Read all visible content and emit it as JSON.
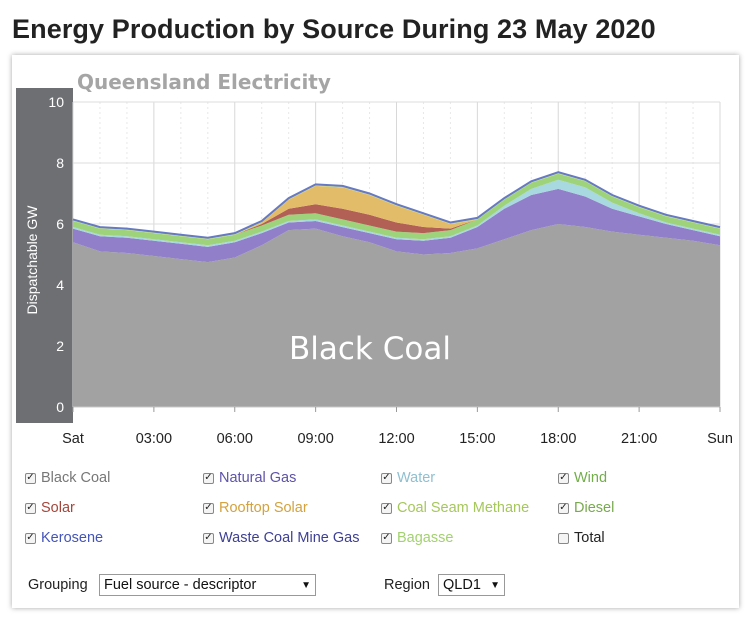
{
  "page_title": "Energy Production by Source During 23 May 2020",
  "chart_data": {
    "type": "area",
    "stacked": true,
    "title": "Queensland Electricity",
    "ylabel": "Dispatchable GW",
    "ylim": [
      0,
      10
    ],
    "yticks": [
      "0",
      "2",
      "4",
      "6",
      "8",
      "10"
    ],
    "xlim": [
      0,
      24
    ],
    "xtick_labels": [
      "Sat",
      "03:00",
      "06:00",
      "09:00",
      "12:00",
      "15:00",
      "18:00",
      "21:00",
      "Sun"
    ],
    "annotation": "Black Coal",
    "x": [
      0,
      1,
      2,
      3,
      4,
      5,
      6,
      7,
      8,
      9,
      10,
      11,
      12,
      13,
      14,
      15,
      16,
      17,
      18,
      19,
      20,
      21,
      22,
      23,
      24
    ],
    "series": [
      {
        "name": "Black Coal",
        "color": "#a2a2a2",
        "values": [
          5.4,
          5.1,
          5.05,
          4.95,
          4.85,
          4.75,
          4.9,
          5.3,
          5.8,
          5.85,
          5.6,
          5.4,
          5.1,
          5.0,
          5.05,
          5.2,
          5.5,
          5.8,
          6.0,
          5.9,
          5.75,
          5.65,
          5.55,
          5.45,
          5.3
        ]
      },
      {
        "name": "Natural Gas",
        "color": "#9180c9",
        "values": [
          0.45,
          0.5,
          0.5,
          0.5,
          0.5,
          0.5,
          0.5,
          0.4,
          0.25,
          0.25,
          0.3,
          0.3,
          0.4,
          0.45,
          0.5,
          0.7,
          1.0,
          1.15,
          1.15,
          1.0,
          0.75,
          0.6,
          0.45,
          0.35,
          0.3
        ]
      },
      {
        "name": "Water",
        "color": "#a8d8e0",
        "values": [
          0.05,
          0.05,
          0.05,
          0.05,
          0.05,
          0.05,
          0.05,
          0.05,
          0.05,
          0.05,
          0.05,
          0.05,
          0.05,
          0.05,
          0.05,
          0.05,
          0.1,
          0.2,
          0.3,
          0.3,
          0.2,
          0.1,
          0.05,
          0.05,
          0.05
        ]
      },
      {
        "name": "Wind",
        "color": "#9fd37b",
        "values": [
          0.2,
          0.2,
          0.2,
          0.2,
          0.2,
          0.2,
          0.2,
          0.2,
          0.2,
          0.2,
          0.2,
          0.2,
          0.2,
          0.2,
          0.2,
          0.2,
          0.2,
          0.2,
          0.2,
          0.2,
          0.2,
          0.2,
          0.2,
          0.2,
          0.2
        ]
      },
      {
        "name": "Solar",
        "color": "#b25f55",
        "values": [
          0,
          0,
          0,
          0,
          0,
          0,
          0,
          0.05,
          0.2,
          0.3,
          0.35,
          0.35,
          0.3,
          0.2,
          0.05,
          0,
          0,
          0,
          0,
          0,
          0,
          0,
          0,
          0,
          0
        ]
      },
      {
        "name": "Rooftop Solar",
        "color": "#e3bc6a",
        "values": [
          0,
          0,
          0,
          0,
          0,
          0,
          0,
          0.05,
          0.3,
          0.6,
          0.7,
          0.65,
          0.55,
          0.4,
          0.15,
          0,
          0,
          0,
          0,
          0,
          0,
          0,
          0,
          0,
          0
        ]
      },
      {
        "name": "Coal Seam Methane",
        "color": "#c5dd8a",
        "values": [
          0.05,
          0.05,
          0.05,
          0.05,
          0.05,
          0.05,
          0.05,
          0.05,
          0.05,
          0.05,
          0.05,
          0.05,
          0.05,
          0.05,
          0.05,
          0.05,
          0.05,
          0.05,
          0.05,
          0.05,
          0.05,
          0.05,
          0.05,
          0.05,
          0.05
        ]
      },
      {
        "name": "Diesel",
        "color": "#90c26a",
        "values": [
          0,
          0,
          0,
          0,
          0,
          0,
          0,
          0,
          0,
          0,
          0,
          0,
          0,
          0,
          0,
          0,
          0,
          0,
          0,
          0,
          0,
          0,
          0,
          0,
          0
        ]
      },
      {
        "name": "Kerosene",
        "color": "#5570cc",
        "values": [
          0,
          0,
          0,
          0,
          0,
          0,
          0,
          0,
          0,
          0,
          0,
          0,
          0,
          0,
          0,
          0,
          0,
          0,
          0,
          0,
          0,
          0,
          0,
          0,
          0
        ]
      },
      {
        "name": "Waste Coal Mine Gas",
        "color": "#4a50a8",
        "values": [
          0,
          0,
          0,
          0,
          0,
          0,
          0,
          0,
          0,
          0,
          0,
          0,
          0,
          0,
          0,
          0,
          0,
          0,
          0,
          0,
          0,
          0,
          0,
          0,
          0
        ]
      },
      {
        "name": "Bagasse",
        "color": "#b9e08f",
        "values": [
          0,
          0,
          0,
          0,
          0,
          0,
          0,
          0,
          0,
          0,
          0,
          0,
          0,
          0,
          0,
          0,
          0,
          0,
          0,
          0,
          0,
          0,
          0,
          0,
          0
        ]
      }
    ],
    "total_line_color": "#6679c4"
  },
  "legend": [
    {
      "label": "Black Coal",
      "checked": "✓",
      "color": "#777777"
    },
    {
      "label": "Natural Gas",
      "checked": "✓",
      "color": "#5e52a8"
    },
    {
      "label": "Water",
      "checked": "✓",
      "color": "#8fbfd0"
    },
    {
      "label": "Wind",
      "checked": "✓",
      "color": "#72ad4a"
    },
    {
      "label": "Solar",
      "checked": "✓",
      "color": "#a6463b"
    },
    {
      "label": "Rooftop Solar",
      "checked": "✓",
      "color": "#d4a23e"
    },
    {
      "label": "Coal Seam Methane",
      "checked": "✓",
      "color": "#a6c75c"
    },
    {
      "label": "Diesel",
      "checked": "✓",
      "color": "#78a94e"
    },
    {
      "label": "Kerosene",
      "checked": "✓",
      "color": "#4455b8"
    },
    {
      "label": "Waste Coal Mine Gas",
      "checked": "✓",
      "color": "#3d3f95"
    },
    {
      "label": "Bagasse",
      "checked": "✓",
      "color": "#a3d170"
    },
    {
      "label": "Total",
      "checked": "",
      "color": "#222222"
    }
  ],
  "controls": {
    "grouping_label": "Grouping",
    "grouping_value": "Fuel source - descriptor",
    "region_label": "Region",
    "region_value": "QLD1",
    "dropdown_icon": "▼"
  },
  "icons": {
    "checkbox": "checkbox-icon",
    "dropdown": "chevron-down-icon"
  }
}
